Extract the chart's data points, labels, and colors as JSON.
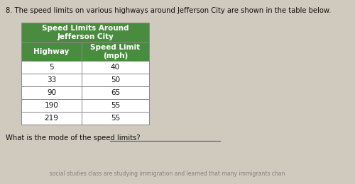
{
  "question_number": "8.",
  "question_text": " The speed limits on various highways around Jefferson City are shown in the table below.",
  "table_title_line1": "Speed Limits Around",
  "table_title_line2": "Jefferson City",
  "col_headers": [
    "Highway",
    "Speed Limit\n(mph)"
  ],
  "rows": [
    [
      "5",
      "40"
    ],
    [
      "33",
      "50"
    ],
    [
      "90",
      "65"
    ],
    [
      "190",
      "55"
    ],
    [
      "219",
      "55"
    ]
  ],
  "footer_text": "What is the mode of the speed limits?",
  "title_bg_color": "#4a8c3f",
  "header_bg_color": "#4a8c3f",
  "title_text_color": "#ffffff",
  "header_text_color": "#ffffff",
  "row_bg": "#ffffff",
  "grid_color": "#888888",
  "page_bg_color": "#cfc9be",
  "question_text_color": "#111111",
  "footer_text_color": "#111111",
  "underline_color": "#555555"
}
